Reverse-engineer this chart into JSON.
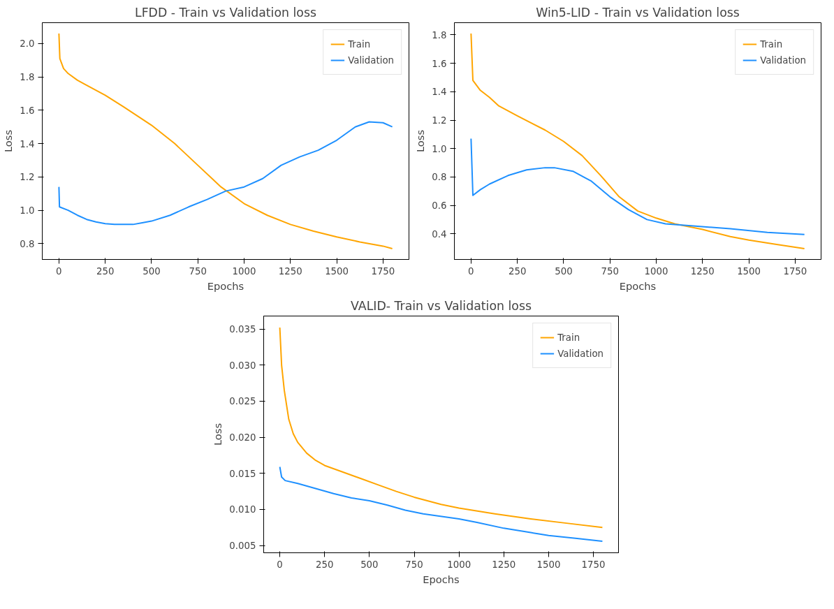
{
  "chart_data": [
    {
      "type": "line",
      "title": "LFDD - Train vs Validation loss",
      "xlabel": "Epochs",
      "ylabel": "Loss",
      "xlim": [
        -90,
        1890
      ],
      "ylim": [
        0.705,
        2.125
      ],
      "xticks": [
        0,
        250,
        500,
        750,
        1000,
        1250,
        1500,
        1750
      ],
      "yticks": [
        0.8,
        {
          "value": 1,
          "label": "1.0"
        },
        1.2,
        1.4,
        1.6,
        1.8,
        {
          "value": 2,
          "label": "2.0"
        }
      ],
      "grid": false,
      "legend": "top right",
      "series": [
        {
          "name": "Train",
          "color": "#ffa500",
          "x": [
            0,
            5,
            25,
            50,
            100,
            150,
            250,
            350,
            500,
            625,
            750,
            875,
            1000,
            1125,
            1250,
            1375,
            1500,
            1625,
            1750,
            1800
          ],
          "values": [
            2.06,
            1.91,
            1.85,
            1.82,
            1.78,
            1.75,
            1.69,
            1.62,
            1.51,
            1.4,
            1.27,
            1.14,
            1.04,
            0.97,
            0.915,
            0.875,
            0.84,
            0.81,
            0.785,
            0.77
          ]
        },
        {
          "name": "Validation",
          "color": "#1e90ff",
          "x": [
            0,
            3,
            50,
            100,
            150,
            200,
            250,
            300,
            400,
            450,
            500,
            600,
            700,
            800,
            900,
            1000,
            1100,
            1200,
            1300,
            1400,
            1500,
            1600,
            1675,
            1750,
            1800
          ],
          "values": [
            1.14,
            1.02,
            1.0,
            0.97,
            0.945,
            0.93,
            0.92,
            0.915,
            0.915,
            0.925,
            0.935,
            0.97,
            1.02,
            1.065,
            1.115,
            1.14,
            1.19,
            1.27,
            1.32,
            1.36,
            1.42,
            1.5,
            1.53,
            1.525,
            1.5
          ]
        }
      ]
    },
    {
      "type": "line",
      "title": "Win5-LID - Train vs Validation loss",
      "xlabel": "Epochs",
      "ylabel": "Loss",
      "xlim": [
        -90,
        1890
      ],
      "ylim": [
        0.219,
        1.886
      ],
      "xticks": [
        0,
        250,
        500,
        750,
        1000,
        1250,
        1500,
        1750
      ],
      "yticks": [
        0.4,
        0.6,
        0.8,
        {
          "value": 1,
          "label": "1.0"
        },
        1.2,
        1.4,
        1.6,
        1.8
      ],
      "grid": false,
      "legend": "top right",
      "series": [
        {
          "name": "Train",
          "color": "#ffa500",
          "x": [
            0,
            10,
            50,
            100,
            150,
            250,
            400,
            500,
            600,
            700,
            800,
            900,
            1000,
            1100,
            1250,
            1400,
            1500,
            1650,
            1800
          ],
          "values": [
            1.81,
            1.48,
            1.41,
            1.36,
            1.3,
            1.23,
            1.13,
            1.05,
            0.95,
            0.81,
            0.66,
            0.56,
            0.51,
            0.47,
            0.43,
            0.38,
            0.355,
            0.325,
            0.295
          ]
        },
        {
          "name": "Validation",
          "color": "#1e90ff",
          "x": [
            0,
            10,
            50,
            100,
            200,
            300,
            400,
            450,
            550,
            650,
            750,
            850,
            950,
            1050,
            1200,
            1400,
            1600,
            1800
          ],
          "values": [
            1.07,
            0.67,
            0.71,
            0.75,
            0.81,
            0.85,
            0.865,
            0.865,
            0.84,
            0.77,
            0.66,
            0.57,
            0.5,
            0.47,
            0.455,
            0.435,
            0.41,
            0.395
          ]
        }
      ]
    },
    {
      "type": "line",
      "title": "VALID- Train vs Validation loss",
      "xlabel": "Epochs",
      "ylabel": "Loss",
      "xlim": [
        -90,
        1890
      ],
      "ylim": [
        0.004,
        0.0368
      ],
      "xticks": [
        0,
        250,
        500,
        750,
        1000,
        1250,
        1500,
        1750
      ],
      "yticks": [
        0.005,
        {
          "value": 0.01,
          "label": "0.010"
        },
        0.015,
        {
          "value": 0.02,
          "label": "0.020"
        },
        0.025,
        {
          "value": 0.03,
          "label": "0.030"
        },
        0.035
      ],
      "grid": false,
      "legend": "top right",
      "series": [
        {
          "name": "Train",
          "color": "#ffa500",
          "x": [
            0,
            10,
            25,
            50,
            75,
            100,
            150,
            200,
            250,
            350,
            450,
            550,
            650,
            750,
            900,
            1000,
            1200,
            1400,
            1600,
            1800
          ],
          "values": [
            0.0352,
            0.03,
            0.0265,
            0.0225,
            0.0205,
            0.0193,
            0.0178,
            0.0168,
            0.0161,
            0.0152,
            0.0143,
            0.0134,
            0.0125,
            0.0117,
            0.0107,
            0.0102,
            0.0094,
            0.0087,
            0.0081,
            0.0075
          ]
        },
        {
          "name": "Validation",
          "color": "#1e90ff",
          "x": [
            0,
            10,
            30,
            100,
            200,
            300,
            400,
            500,
            600,
            700,
            800,
            1000,
            1100,
            1250,
            1400,
            1500,
            1650,
            1800
          ],
          "values": [
            0.0159,
            0.0145,
            0.014,
            0.0136,
            0.0129,
            0.0122,
            0.0116,
            0.0112,
            0.0106,
            0.0099,
            0.0094,
            0.0087,
            0.0082,
            0.0074,
            0.0068,
            0.0064,
            0.006,
            0.0056
          ]
        }
      ]
    }
  ]
}
